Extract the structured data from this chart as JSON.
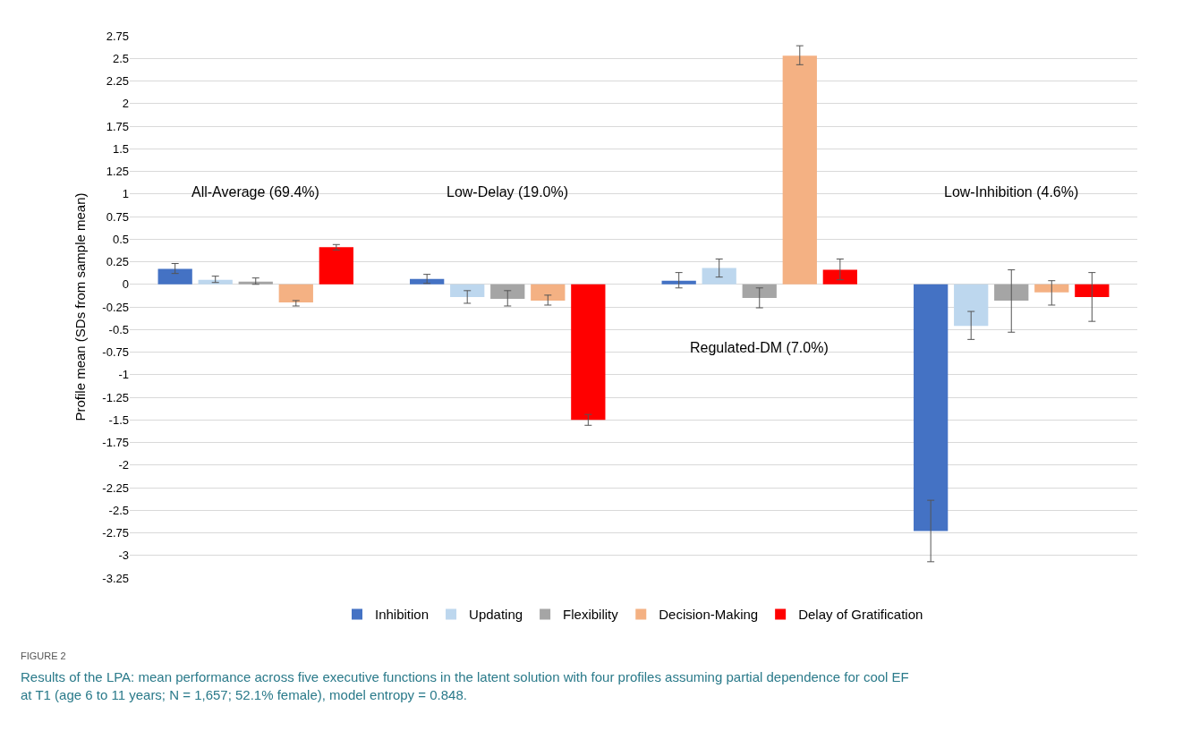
{
  "chart_data": {
    "type": "bar",
    "ylabel": "Profile mean (SDs from sample mean)",
    "categories": [
      null,
      null,
      null,
      null
    ],
    "series": [
      {
        "name": "Inhibition",
        "color": "#4472c4",
        "values": [
          0.17,
          0.06,
          0.04,
          -2.73
        ],
        "errors": [
          [
            0.12,
            0.23
          ],
          [
            0.01,
            0.11
          ],
          [
            -0.04,
            0.13
          ],
          [
            -3.07,
            -2.39
          ]
        ]
      },
      {
        "name": "Updating",
        "color": "#bdd7ee",
        "values": [
          0.05,
          -0.14,
          0.18,
          -0.46
        ],
        "errors": [
          [
            0.02,
            0.09
          ],
          [
            -0.21,
            -0.07
          ],
          [
            0.08,
            0.28
          ],
          [
            -0.61,
            -0.3
          ]
        ]
      },
      {
        "name": "Flexibility",
        "color": "#a5a5a5",
        "values": [
          0.03,
          -0.16,
          -0.15,
          -0.18
        ],
        "errors": [
          [
            0.0,
            0.07
          ],
          [
            -0.24,
            -0.07
          ],
          [
            -0.26,
            -0.04
          ],
          [
            -0.53,
            0.16
          ]
        ]
      },
      {
        "name": "Decision-Making",
        "color": "#f4b183",
        "values": [
          -0.2,
          -0.18,
          2.53,
          -0.09
        ],
        "errors": [
          [
            -0.24,
            -0.18
          ],
          [
            -0.23,
            -0.12
          ],
          [
            2.43,
            2.64
          ],
          [
            -0.23,
            0.04
          ]
        ]
      },
      {
        "name": "Delay of Gratification",
        "color": "#ff0000",
        "values": [
          0.41,
          -1.5,
          0.16,
          -0.14
        ],
        "errors": [
          [
            0.38,
            0.44
          ],
          [
            -1.56,
            -1.44
          ],
          [
            0.05,
            0.28
          ],
          [
            -0.41,
            0.13
          ]
        ]
      }
    ],
    "ylim": [
      -3.25,
      2.75
    ],
    "yticks": [
      2.75,
      2.5,
      2.25,
      2,
      1.75,
      1.5,
      1.25,
      1,
      0.75,
      0.5,
      0.25,
      0,
      -0.25,
      -0.5,
      -0.75,
      -1,
      -1.25,
      -1.5,
      -1.75,
      -2,
      -2.25,
      -2.5,
      -2.75,
      -3,
      -3.25
    ],
    "grid": "y",
    "legend": "bottom",
    "annotations": [
      "All-Average (69.4%)",
      "Low-Delay (19.0%)",
      "Regulated-DM (7.0%)",
      "Low-Inhibition (4.6%)",
      "FIGURE 2",
      "Results of the LPA: mean performance across five executive functions in the latent solution with four profiles assuming partial dependence for cool EF at T1 (age 6 to 11 years; N = 1,657; 52.1% female), model entropy = 0.848."
    ]
  }
}
